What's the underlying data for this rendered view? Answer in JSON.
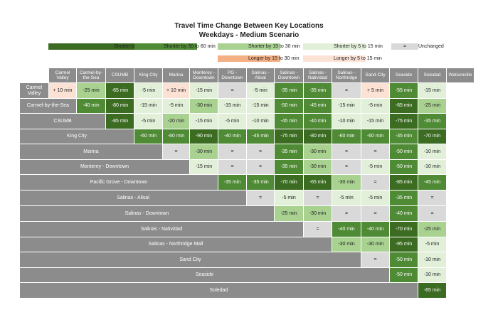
{
  "title": "Travel Time Change Between Key Locations",
  "subtitle": "Weekdays - Medium Scenario",
  "colors": {
    "header_bg": "#8c8c8c",
    "header_text": "#ffffff",
    "gt60": "#3c6c22",
    "s30_60": "#4f8a35",
    "s15_30": "#a9d291",
    "s5_15": "#e2efd9",
    "unchanged": "#d9d9d9",
    "l15_30": "#f4b084",
    "l5_15": "#fbe2d5"
  },
  "legend": [
    {
      "label": "Shorter by over 60 min",
      "key": "gt60"
    },
    {
      "label": "Shorter by 30 to 60 min",
      "key": "s30_60"
    },
    {
      "label": "Shorter by 15 to 30 min",
      "key": "s15_30"
    },
    {
      "label": "Shorter by 5 to 15 min",
      "key": "s5_15"
    },
    {
      "label": "Unchanged",
      "key": "unchanged",
      "symbol": "="
    },
    {
      "label": "Longer by 15 to 30 min",
      "key": "l15_30"
    },
    {
      "label": "Longer by 5 to 15 min",
      "key": "l5_15"
    }
  ],
  "chart_data": {
    "type": "table",
    "columns": [
      "Carmel Valley",
      "Carmel-by-the-Sea",
      "CSUMB",
      "King City",
      "Marina",
      "Monterey - Downtown",
      "PG - Downtown",
      "Salinas - Alisal",
      "Salinas - Downtown",
      "Salinas - Natividad",
      "Salinas - Northridge",
      "Sand City",
      "Seaside",
      "Soledad",
      "Watsonville"
    ],
    "rows": [
      {
        "label": "Carmel Valley",
        "start": 1,
        "values": [
          "+ 10 min",
          "-25 min",
          "-65 min",
          "-5 min",
          "+ 10 min",
          "-15 min",
          "=",
          "-5 min",
          "-35 min",
          "-35 min",
          "=",
          "+ 5 min",
          "-55 min",
          "-15 min"
        ],
        "cats": [
          "l5_15",
          "s15_30",
          "gt60",
          "s5_15",
          "l5_15",
          "s5_15",
          "unchanged",
          "s5_15",
          "s30_60",
          "s30_60",
          "unchanged",
          "l5_15",
          "s30_60",
          "s5_15"
        ]
      },
      {
        "label": "Carmel-by-the-Sea",
        "start": 2,
        "values": [
          "-40 min",
          "-80 min",
          "-15 min",
          "-5 min",
          "-30 min",
          "-15 min",
          "-15 min",
          "-50 min",
          "-45 min",
          "-15 min",
          "-5 min",
          "-65 min",
          "-25 min"
        ],
        "cats": [
          "s30_60",
          "gt60",
          "s5_15",
          "s5_15",
          "s15_30",
          "s5_15",
          "s5_15",
          "s30_60",
          "s30_60",
          "s5_15",
          "s5_15",
          "gt60",
          "s15_30"
        ]
      },
      {
        "label": "CSUMB",
        "start": 3,
        "values": [
          "-85 min",
          "-5 min",
          "-20 min",
          "-15 min",
          "-5 min",
          "-10 min",
          "-45 min",
          "-40 min",
          "-10 min",
          "-15 min",
          "-75 min",
          "-35 min"
        ],
        "cats": [
          "gt60",
          "s5_15",
          "s15_30",
          "s5_15",
          "s5_15",
          "s5_15",
          "s30_60",
          "s30_60",
          "s5_15",
          "s5_15",
          "gt60",
          "s30_60"
        ]
      },
      {
        "label": "King City",
        "start": 4,
        "values": [
          "-60 min",
          "-60 min",
          "-90 min",
          "-40 min",
          "-45 min",
          "-75 min",
          "-80 min",
          "-60 min",
          "-60 min",
          "-35 min",
          "-70 min"
        ],
        "cats": [
          "s30_60",
          "s30_60",
          "gt60",
          "s30_60",
          "s30_60",
          "gt60",
          "gt60",
          "s30_60",
          "s30_60",
          "s30_60",
          "gt60"
        ]
      },
      {
        "label": "Marina",
        "start": 5,
        "values": [
          "=",
          "-30 min",
          "=",
          "=",
          "-35 min",
          "-30 min",
          "=",
          "=",
          "-50 min",
          "-10 min"
        ],
        "cats": [
          "unchanged",
          "s15_30",
          "unchanged",
          "unchanged",
          "s30_60",
          "s15_30",
          "unchanged",
          "unchanged",
          "s30_60",
          "s5_15"
        ]
      },
      {
        "label": "Monterey - Downtown",
        "start": 6,
        "values": [
          "-15 min",
          "=",
          "=",
          "-35 min",
          "-30 min",
          "=",
          "-5 min",
          "-50 min",
          "-10 min"
        ],
        "cats": [
          "s5_15",
          "unchanged",
          "unchanged",
          "s30_60",
          "s15_30",
          "unchanged",
          "s5_15",
          "s30_60",
          "s5_15"
        ]
      },
      {
        "label": "Pacific Grove - Downtown",
        "start": 7,
        "values": [
          "-35 min",
          "-35 min",
          "-70 min",
          "-65 min",
          "-30 min",
          "=",
          "-85 min",
          "-45 min"
        ],
        "cats": [
          "s30_60",
          "s30_60",
          "gt60",
          "gt60",
          "s15_30",
          "unchanged",
          "gt60",
          "s30_60"
        ]
      },
      {
        "label": "Salinas - Alisal",
        "start": 8,
        "values": [
          "=",
          "-5 min",
          "=",
          "-5 min",
          "-5 min",
          "-35 min",
          "="
        ],
        "cats": [
          "unchanged",
          "s5_15",
          "unchanged",
          "s5_15",
          "s5_15",
          "s30_60",
          "unchanged"
        ]
      },
      {
        "label": "Salinas - Downtown",
        "start": 9,
        "values": [
          "-25 min",
          "-30 min",
          "=",
          "=",
          "-40 min",
          "="
        ],
        "cats": [
          "s15_30",
          "s15_30",
          "unchanged",
          "unchanged",
          "s30_60",
          "unchanged"
        ]
      },
      {
        "label": "Salinas - Natividad",
        "start": 10,
        "values": [
          "=",
          "-40 min",
          "-40 min",
          "-70 min",
          "-25 min"
        ],
        "cats": [
          "unchanged",
          "s30_60",
          "s30_60",
          "gt60",
          "s15_30"
        ]
      },
      {
        "label": "Salinas - Northridge Mall",
        "start": 11,
        "values": [
          "-30 min",
          "-30 min",
          "-95 min",
          "-5 min"
        ],
        "cats": [
          "s15_30",
          "s15_30",
          "gt60",
          "s5_15"
        ]
      },
      {
        "label": "Sand City",
        "start": 12,
        "values": [
          "=",
          "-50 min",
          "-10 min"
        ],
        "cats": [
          "unchanged",
          "s30_60",
          "s5_15"
        ]
      },
      {
        "label": "Seaside",
        "start": 13,
        "values": [
          "-50 min",
          "-10 min"
        ],
        "cats": [
          "s30_60",
          "s5_15"
        ]
      },
      {
        "label": "Soledad",
        "start": 14,
        "values": [
          "-65 min"
        ],
        "cats": [
          "gt60"
        ]
      }
    ]
  }
}
